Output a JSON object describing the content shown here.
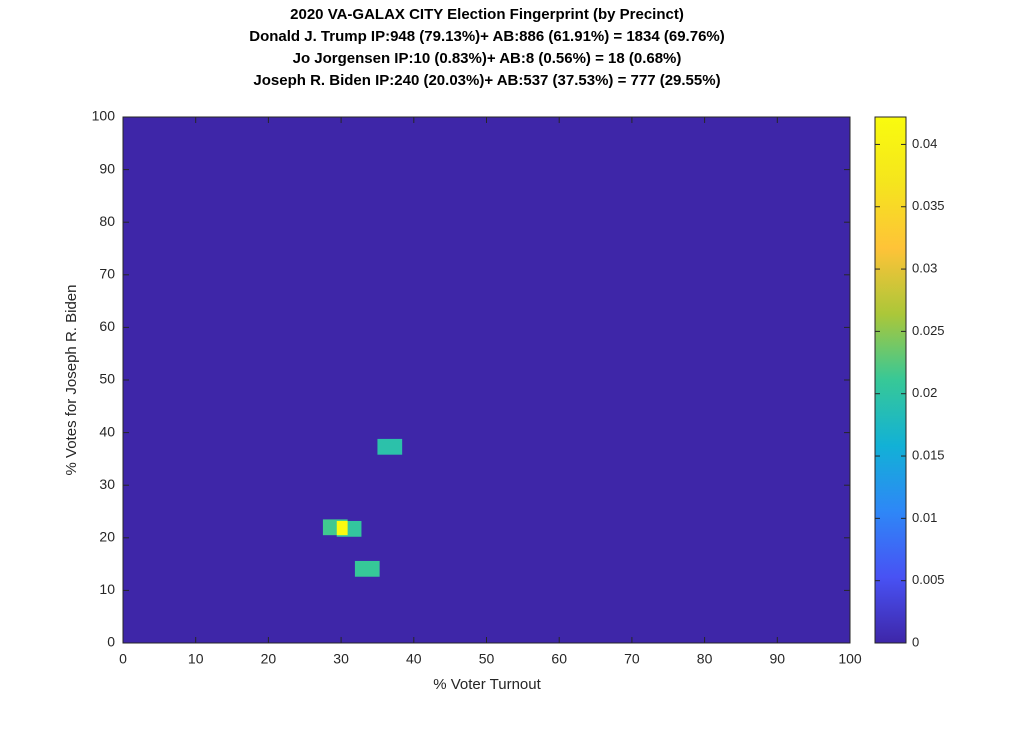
{
  "chart_data": {
    "type": "heatmap",
    "title": [
      "2020 VA-GALAX CITY Election Fingerprint (by Precinct)",
      "Donald J. Trump IP:948 (79.13%)+ AB:886 (61.91%) = 1834 (69.76%)",
      "Jo Jorgensen IP:10 (0.83%)+ AB:8 (0.56%) = 18 (0.68%)",
      "Joseph R. Biden IP:240 (20.03%)+ AB:537 (37.53%) = 777 (29.55%)"
    ],
    "x_label": "% Voter Turnout",
    "y_label": "% Votes for Joseph R. Biden",
    "x": [
      36.7,
      29.2,
      31.1,
      33.6
    ],
    "y": [
      37.3,
      22.0,
      21.7,
      14.1
    ],
    "values": [
      0.0195,
      0.0215,
      0.0205,
      0.021
    ],
    "xlim": [
      0,
      100
    ],
    "xticks": [
      0,
      10,
      20,
      30,
      40,
      50,
      60,
      70,
      80,
      90,
      100
    ],
    "ylim": [
      0,
      100
    ],
    "yticks": [
      0,
      10,
      20,
      30,
      40,
      50,
      60,
      70,
      80,
      90,
      100
    ],
    "colormap": "parula",
    "clim": [
      0,
      0.0422
    ],
    "cticks": [
      0,
      0.005,
      0.01,
      0.015,
      0.02,
      0.025,
      0.03,
      0.035,
      0.04
    ]
  }
}
